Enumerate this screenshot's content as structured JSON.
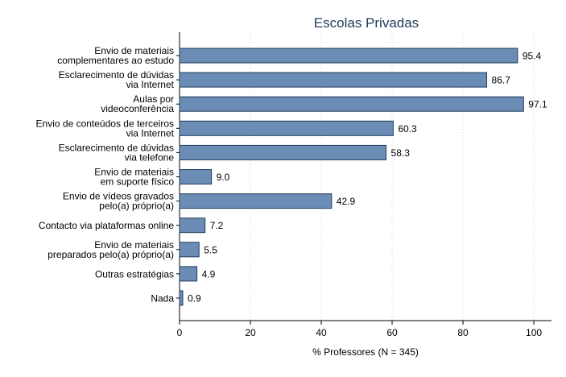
{
  "chart_data": {
    "type": "bar",
    "orientation": "horizontal",
    "title": "Escolas Privadas",
    "xlabel": "% Professores (N = 345)",
    "xlim": [
      0,
      100
    ],
    "xticks": [
      "0",
      "20",
      "40",
      "60",
      "80",
      "100"
    ],
    "grid": "vertical-dotted",
    "bar_color": "#6b8db5",
    "bar_edge_color": "#1f3b5c",
    "categories": [
      [
        "Envio de materiais",
        "complementares ao estudo"
      ],
      [
        "Esclarecimento de dúvidas",
        "via Internet"
      ],
      [
        "Aulas por",
        "videoconferência"
      ],
      [
        "Envio de conteúdos de terceiros",
        "via Internet"
      ],
      [
        "Esclarecimento de dúvidas",
        "via telefone"
      ],
      [
        "Envio de materiais",
        "em suporte físico"
      ],
      [
        "Envio de vídeos gravados",
        "pelo(a) próprio(a)"
      ],
      [
        "Contacto via plataformas online"
      ],
      [
        "Envio de materiais",
        "preparados pelo(a) próprio(a)"
      ],
      [
        "Outras estratégias"
      ],
      [
        "Nada"
      ]
    ],
    "values": [
      95.4,
      86.7,
      97.1,
      60.3,
      58.3,
      9.0,
      42.9,
      7.2,
      5.5,
      4.9,
      0.9
    ],
    "value_labels": [
      "95.4",
      "86.7",
      "97.1",
      "60.3",
      "58.3",
      "9.0",
      "42.9",
      "7.2",
      "5.5",
      "4.9",
      "0.9"
    ]
  }
}
